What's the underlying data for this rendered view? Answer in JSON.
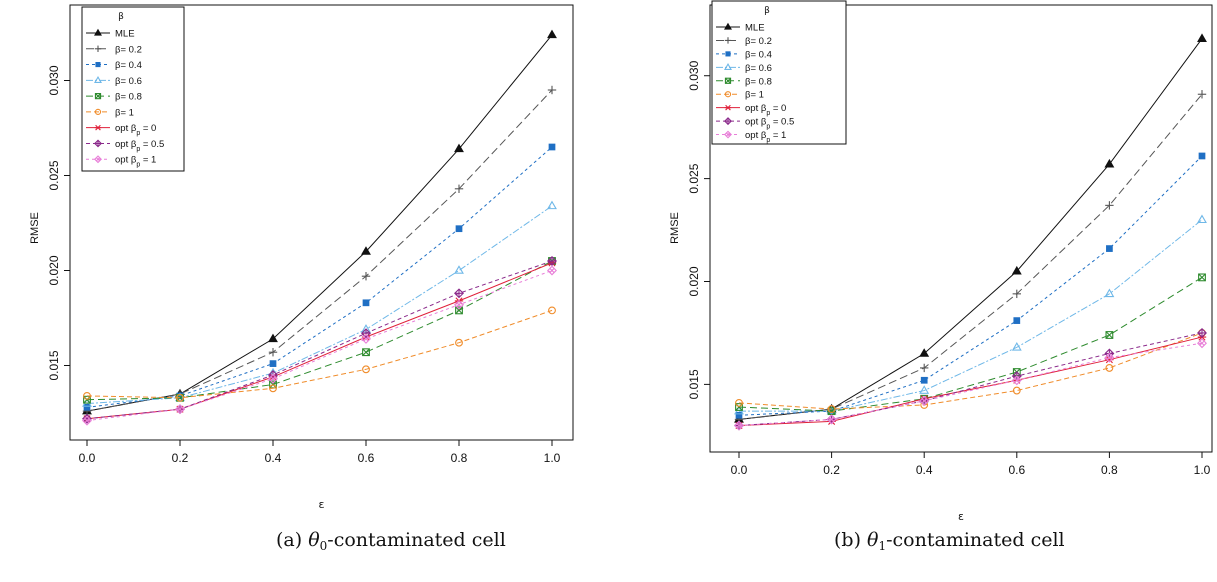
{
  "figures": [
    {
      "caption_prefix": "(a) ",
      "caption_symbol": "θ",
      "caption_sub": "0",
      "caption_suffix": "-contaminated cell"
    },
    {
      "caption_prefix": "(b) ",
      "caption_symbol": "θ",
      "caption_sub": "1",
      "caption_suffix": "-contaminated cell"
    }
  ],
  "chart_data": [
    {
      "type": "line",
      "xlabel": "ε",
      "ylabel": "RMSE",
      "legend_title": "β",
      "legend_position": "top-left",
      "xlim": [
        0.0,
        1.0
      ],
      "ylim": [
        0.0115,
        0.0335
      ],
      "x_ticks": [
        0.0,
        0.2,
        0.4,
        0.6,
        0.8,
        1.0
      ],
      "x_tick_labels": [
        "0.0",
        "0.2",
        "0.4",
        "0.6",
        "0.8",
        "1.0"
      ],
      "y_ticks": [
        0.015,
        0.02,
        0.025,
        0.03
      ],
      "y_tick_labels": [
        "0.015",
        "0.020",
        "0.025",
        "0.030"
      ],
      "x": [
        0.0,
        0.2,
        0.4,
        0.6,
        0.8,
        1.0
      ],
      "series": [
        {
          "name": "MLE",
          "color": "#111111",
          "dash": "",
          "marker": "triangle-filled",
          "values": [
            0.0126,
            0.0135,
            0.0164,
            0.021,
            0.0264,
            0.0324
          ]
        },
        {
          "name": "β= 0.2",
          "color": "#555555",
          "dash": "8,4",
          "marker": "plus",
          "values": [
            0.0126,
            0.0135,
            0.0157,
            0.0197,
            0.0243,
            0.0295
          ]
        },
        {
          "name": "β= 0.4",
          "color": "#1f6fc4",
          "dash": "3,3",
          "marker": "square-filled",
          "values": [
            0.0128,
            0.0134,
            0.0151,
            0.0183,
            0.0222,
            0.0265
          ]
        },
        {
          "name": "β= 0.6",
          "color": "#6fb8e8",
          "dash": "7,2,2,2",
          "marker": "triangle-open",
          "values": [
            0.013,
            0.0133,
            0.0146,
            0.0169,
            0.02,
            0.0234
          ]
        },
        {
          "name": "β= 0.8",
          "color": "#2e8b2e",
          "dash": "7,4",
          "marker": "square-x",
          "values": [
            0.0132,
            0.0133,
            0.014,
            0.0157,
            0.0179,
            0.0205
          ]
        },
        {
          "name": "β= 1",
          "color": "#f08c2a",
          "dash": "5,3",
          "marker": "circle-open",
          "values": [
            0.0134,
            0.0133,
            0.0138,
            0.0148,
            0.0162,
            0.0179
          ]
        },
        {
          "name": "opt β",
          "sub": "p",
          "suffix": " = 0",
          "color": "#e0203a",
          "dash": "",
          "marker": "asterisk",
          "values": [
            0.0122,
            0.0127,
            0.0144,
            0.0165,
            0.0184,
            0.0204
          ]
        },
        {
          "name": "opt β",
          "sub": "p",
          "suffix": " = 0.5",
          "color": "#8b2a8b",
          "dash": "4,3",
          "marker": "diamond-plus",
          "values": [
            0.0122,
            0.0127,
            0.0145,
            0.0167,
            0.0188,
            0.0205
          ]
        },
        {
          "name": "opt β",
          "sub": "p",
          "suffix": " = 1",
          "color": "#e87fd8",
          "dash": "3,3",
          "marker": "diamond-x",
          "values": [
            0.0121,
            0.0127,
            0.0143,
            0.0164,
            0.0182,
            0.02
          ]
        }
      ]
    },
    {
      "type": "line",
      "xlabel": "ε",
      "ylabel": "RMSE",
      "legend_title": "β",
      "legend_position": "top-left",
      "xlim": [
        0.0,
        1.0
      ],
      "ylim": [
        0.0122,
        0.033
      ],
      "x_ticks": [
        0.0,
        0.2,
        0.4,
        0.6,
        0.8,
        1.0
      ],
      "x_tick_labels": [
        "0.0",
        "0.2",
        "0.4",
        "0.6",
        "0.8",
        "1.0"
      ],
      "y_ticks": [
        0.015,
        0.02,
        0.025,
        0.03
      ],
      "y_tick_labels": [
        "0.015",
        "0.020",
        "0.025",
        "0.030"
      ],
      "x": [
        0.0,
        0.2,
        0.4,
        0.6,
        0.8,
        1.0
      ],
      "series": [
        {
          "name": "MLE",
          "color": "#111111",
          "dash": "",
          "marker": "triangle-filled",
          "values": [
            0.0133,
            0.0138,
            0.0165,
            0.0205,
            0.0257,
            0.0318
          ]
        },
        {
          "name": "β= 0.2",
          "color": "#555555",
          "dash": "8,4",
          "marker": "plus",
          "values": [
            0.0133,
            0.0138,
            0.0158,
            0.0194,
            0.0237,
            0.0291
          ]
        },
        {
          "name": "β= 0.4",
          "color": "#1f6fc4",
          "dash": "3,3",
          "marker": "square-filled",
          "values": [
            0.0135,
            0.0137,
            0.0152,
            0.0181,
            0.0216,
            0.0261
          ]
        },
        {
          "name": "β= 0.6",
          "color": "#6fb8e8",
          "dash": "7,2,2,2",
          "marker": "triangle-open",
          "values": [
            0.0137,
            0.0137,
            0.0147,
            0.0168,
            0.0194,
            0.023
          ]
        },
        {
          "name": "β= 0.8",
          "color": "#2e8b2e",
          "dash": "7,4",
          "marker": "square-x",
          "values": [
            0.0139,
            0.0137,
            0.0143,
            0.0156,
            0.0174,
            0.0202
          ]
        },
        {
          "name": "β= 1",
          "color": "#f08c2a",
          "dash": "5,3",
          "marker": "circle-open",
          "values": [
            0.0141,
            0.0138,
            0.014,
            0.0147,
            0.0158,
            0.0175
          ]
        },
        {
          "name": "opt β",
          "sub": "p",
          "suffix": " = 0",
          "color": "#e0203a",
          "dash": "",
          "marker": "asterisk",
          "values": [
            0.013,
            0.0132,
            0.0143,
            0.0152,
            0.0162,
            0.0173
          ]
        },
        {
          "name": "opt β",
          "sub": "p",
          "suffix": " = 0.5",
          "color": "#8b2a8b",
          "dash": "4,3",
          "marker": "diamond-plus",
          "values": [
            0.013,
            0.0133,
            0.0142,
            0.0154,
            0.0165,
            0.0175
          ]
        },
        {
          "name": "opt β",
          "sub": "p",
          "suffix": " = 1",
          "color": "#e87fd8",
          "dash": "3,3",
          "marker": "diamond-x",
          "values": [
            0.013,
            0.0133,
            0.0142,
            0.0152,
            0.0163,
            0.017
          ]
        }
      ]
    }
  ]
}
